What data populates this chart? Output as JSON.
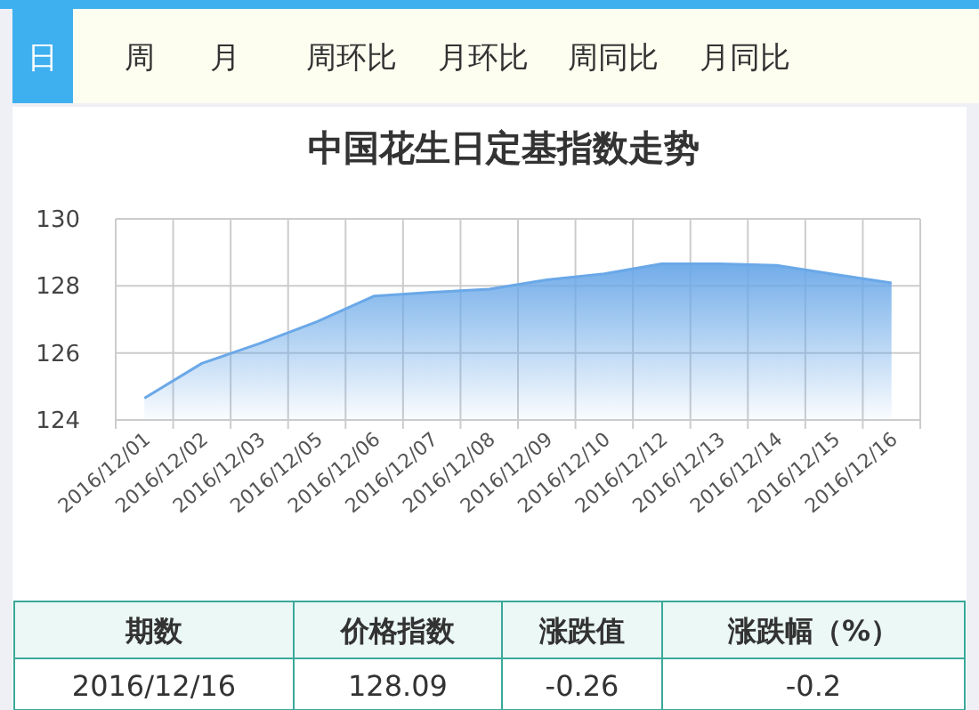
{
  "chart_data": {
    "type": "area",
    "title": "中国花生日定基指数走势",
    "categories": [
      "2016/12/01",
      "2016/12/02",
      "2016/12/03",
      "2016/12/05",
      "2016/12/06",
      "2016/12/07",
      "2016/12/08",
      "2016/12/09",
      "2016/12/10",
      "2016/12/12",
      "2016/12/13",
      "2016/12/14",
      "2016/12/15",
      "2016/12/16"
    ],
    "series": [
      {
        "color": "#6aa8e8",
        "values": [
          124.65,
          125.69,
          126.28,
          126.93,
          127.7,
          127.81,
          127.9,
          128.18,
          128.36,
          128.66,
          128.66,
          128.61,
          128.35,
          128.09
        ]
      }
    ],
    "ylim": [
      124,
      130
    ],
    "yticks": [
      124,
      126,
      128,
      130
    ],
    "grid": true,
    "annotations": [
      "日",
      "周",
      "月",
      "周环比",
      "月环比",
      "周同比",
      "月同比",
      "期数",
      "价格指数",
      "涨跌值",
      "涨跌幅（%）",
      "2016/12/16",
      "128.09",
      "-0.26",
      "-0.2"
    ]
  }
}
